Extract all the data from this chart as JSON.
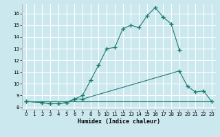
{
  "xlabel": "Humidex (Indice chaleur)",
  "bg_color": "#cce8ef",
  "grid_color": "#ffffff",
  "line_color": "#1a7a6e",
  "xlim": [
    -0.5,
    23.5
  ],
  "ylim": [
    7.8,
    16.8
  ],
  "yticks": [
    8,
    9,
    10,
    11,
    12,
    13,
    14,
    15,
    16
  ],
  "xticks": [
    0,
    1,
    2,
    3,
    4,
    5,
    6,
    7,
    8,
    9,
    10,
    11,
    12,
    13,
    14,
    15,
    16,
    17,
    18,
    19,
    20,
    21,
    22,
    23
  ],
  "line1_x": [
    0,
    1,
    2,
    3,
    4,
    5,
    6,
    7,
    8,
    9,
    10,
    11,
    12,
    13,
    14,
    15,
    16,
    17,
    18,
    19,
    20,
    21,
    22,
    23
  ],
  "line1_y": [
    8.5,
    8.5,
    8.5,
    8.5,
    8.5,
    8.5,
    8.5,
    8.5,
    8.5,
    8.5,
    8.5,
    8.5,
    8.5,
    8.5,
    8.5,
    8.5,
    8.5,
    8.5,
    8.5,
    8.5,
    8.5,
    8.5,
    8.5,
    8.5
  ],
  "line2_x": [
    0,
    2,
    3,
    4,
    5,
    6,
    7,
    19,
    20,
    21,
    22,
    23
  ],
  "line2_y": [
    8.5,
    8.4,
    8.3,
    8.3,
    8.4,
    8.7,
    8.7,
    11.1,
    9.8,
    9.3,
    9.4,
    8.5
  ],
  "line3_x": [
    0,
    2,
    3,
    4,
    5,
    6,
    7,
    8,
    9,
    10,
    11,
    12,
    13,
    14,
    15,
    16,
    17,
    18,
    19
  ],
  "line3_y": [
    8.5,
    8.4,
    8.3,
    8.3,
    8.4,
    8.7,
    9.0,
    10.3,
    11.6,
    13.0,
    13.1,
    14.7,
    15.0,
    14.8,
    15.8,
    16.5,
    15.7,
    15.1,
    12.9
  ]
}
